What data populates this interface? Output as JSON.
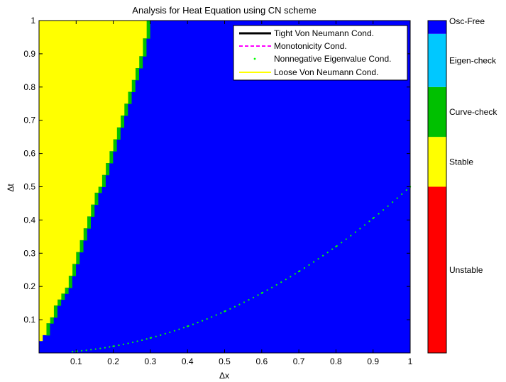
{
  "chart_data": {
    "type": "heatmap",
    "title": "Analysis for Heat Equation using CN scheme",
    "xlabel": "Δx",
    "ylabel": "Δt",
    "xlim": [
      0,
      1
    ],
    "ylim": [
      0,
      1
    ],
    "x_ticks": [
      "0.1",
      "0.2",
      "0.3",
      "0.4",
      "0.5",
      "0.6",
      "0.7",
      "0.8",
      "0.9",
      "1"
    ],
    "y_ticks": [
      "0.1",
      "0.2",
      "0.3",
      "0.4",
      "0.5",
      "0.6",
      "0.7",
      "0.8",
      "0.9",
      "1"
    ],
    "grid": false,
    "regions": [
      {
        "name": "Stable",
        "color": "#ffff00",
        "boundary": "Δt = (Δx/0.29)^2 approx, left of boundary"
      },
      {
        "name": "Curve-check",
        "color": "#00c000",
        "boundary": "thin band along Stable/Osc-Free boundary"
      },
      {
        "name": "Osc-Free",
        "color": "#0000ff",
        "boundary": "remaining domain"
      }
    ],
    "stable_boundary": {
      "x": [
        0.0,
        0.01,
        0.02,
        0.03,
        0.05,
        0.07,
        0.09,
        0.1,
        0.12,
        0.14,
        0.16,
        0.18,
        0.2,
        0.22,
        0.24,
        0.26,
        0.28,
        0.29
      ],
      "y": [
        0.03,
        0.05,
        0.07,
        0.11,
        0.16,
        0.2,
        0.25,
        0.3,
        0.37,
        0.43,
        0.5,
        0.57,
        0.63,
        0.7,
        0.77,
        0.84,
        0.92,
        1.0
      ]
    },
    "series": [
      {
        "name": "Tight Von Neumann Cond.",
        "color": "#000000",
        "style": "solid",
        "values": []
      },
      {
        "name": "Monotonicity Cond.",
        "color": "#ff00ff",
        "style": "dashed",
        "values": []
      },
      {
        "name": "Nonnegative Eigenvalue Cond.",
        "color": "#00ff00",
        "style": "dotted",
        "x": [
          0.1,
          0.2,
          0.3,
          0.4,
          0.5,
          0.6,
          0.7,
          0.8,
          0.9,
          1.0
        ],
        "y": [
          0.005,
          0.02,
          0.045,
          0.08,
          0.125,
          0.18,
          0.245,
          0.32,
          0.405,
          0.5
        ]
      },
      {
        "name": "Loose Von Neumann Cond.",
        "color": "#ffff00",
        "style": "solid",
        "values": []
      }
    ],
    "legend": {
      "placement": "top-right",
      "entries": [
        "Tight Von Neumann Cond.",
        "Monotonicity Cond.",
        "Nonnegative Eigenvalue Cond.",
        "Loose Von Neumann Cond."
      ]
    },
    "colorbar": {
      "segments": [
        {
          "label": "Unstable",
          "color": "#ff0000",
          "from": 0.0,
          "to": 0.5
        },
        {
          "label": "Stable",
          "color": "#ffff00",
          "from": 0.5,
          "to": 0.65
        },
        {
          "label": "Curve-check",
          "color": "#00c000",
          "from": 0.65,
          "to": 0.8
        },
        {
          "label": "Eigen-check",
          "color": "#00c8ff",
          "from": 0.8,
          "to": 0.96
        },
        {
          "label": "Osc-Free",
          "color": "#0000ff",
          "from": 0.96,
          "to": 1.0
        }
      ]
    }
  }
}
